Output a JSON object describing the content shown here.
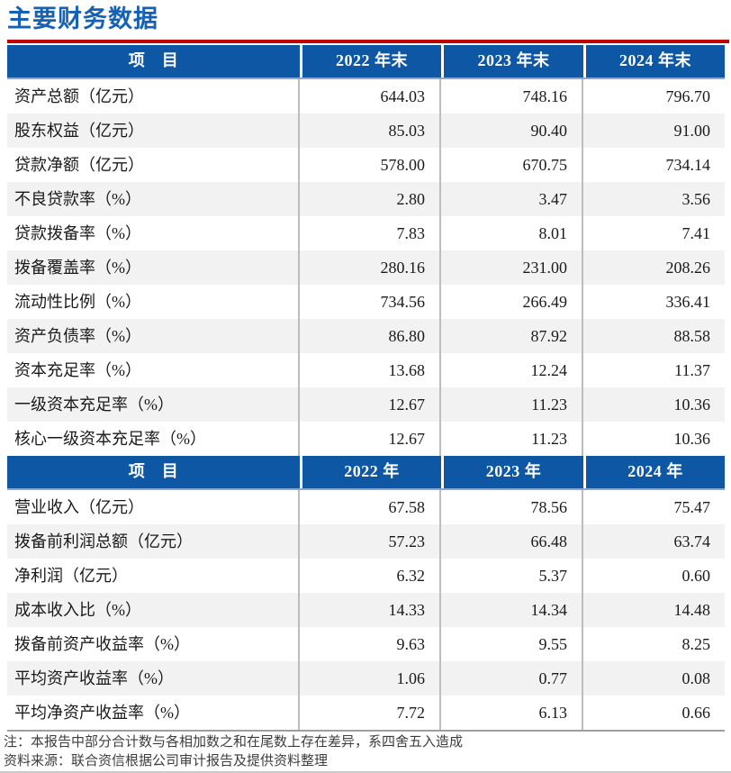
{
  "title": "主要财务数据",
  "colors": {
    "title_blue": "#1561b5",
    "header_blue": "#0d57a5",
    "rule_red": "#c00000",
    "row_shade": "#f2f2f2"
  },
  "table": {
    "sections": [
      {
        "header": {
          "item_label": "项　目",
          "cols": [
            "2022 年末",
            "2023 年末",
            "2024 年末"
          ]
        },
        "rows": [
          {
            "label": "资产总额（亿元）",
            "values": [
              "644.03",
              "748.16",
              "796.70"
            ]
          },
          {
            "label": "股东权益（亿元）",
            "values": [
              "85.03",
              "90.40",
              "91.00"
            ]
          },
          {
            "label": "贷款净额（亿元）",
            "values": [
              "578.00",
              "670.75",
              "734.14"
            ]
          },
          {
            "label": "不良贷款率（%）",
            "values": [
              "2.80",
              "3.47",
              "3.56"
            ]
          },
          {
            "label": "贷款拨备率（%）",
            "values": [
              "7.83",
              "8.01",
              "7.41"
            ]
          },
          {
            "label": "拨备覆盖率（%）",
            "values": [
              "280.16",
              "231.00",
              "208.26"
            ]
          },
          {
            "label": "流动性比例（%）",
            "values": [
              "734.56",
              "266.49",
              "336.41"
            ]
          },
          {
            "label": "资产负债率（%）",
            "values": [
              "86.80",
              "87.92",
              "88.58"
            ]
          },
          {
            "label": "资本充足率（%）",
            "values": [
              "13.68",
              "12.24",
              "11.37"
            ]
          },
          {
            "label": "一级资本充足率（%）",
            "values": [
              "12.67",
              "11.23",
              "10.36"
            ]
          },
          {
            "label": "核心一级资本充足率（%）",
            "values": [
              "12.67",
              "11.23",
              "10.36"
            ]
          }
        ]
      },
      {
        "header": {
          "item_label": "项　目",
          "cols": [
            "2022 年",
            "2023 年",
            "2024 年"
          ]
        },
        "rows": [
          {
            "label": "营业收入（亿元）",
            "values": [
              "67.58",
              "78.56",
              "75.47"
            ]
          },
          {
            "label": "拨备前利润总额（亿元）",
            "values": [
              "57.23",
              "66.48",
              "63.74"
            ]
          },
          {
            "label": "净利润（亿元）",
            "values": [
              "6.32",
              "5.37",
              "0.60"
            ]
          },
          {
            "label": "成本收入比（%）",
            "values": [
              "14.33",
              "14.34",
              "14.48"
            ]
          },
          {
            "label": "拨备前资产收益率（%）",
            "values": [
              "9.63",
              "9.55",
              "8.25"
            ]
          },
          {
            "label": "平均资产收益率（%）",
            "values": [
              "1.06",
              "0.77",
              "0.08"
            ]
          },
          {
            "label": "平均净资产收益率（%）",
            "values": [
              "7.72",
              "6.13",
              "0.66"
            ]
          }
        ]
      }
    ]
  },
  "notes": {
    "note": "注：本报告中部分合计数与各相加数之和在尾数上存在差异，系四舍五入造成",
    "source": "资料来源：联合资信根据公司审计报告及提供资料整理"
  }
}
